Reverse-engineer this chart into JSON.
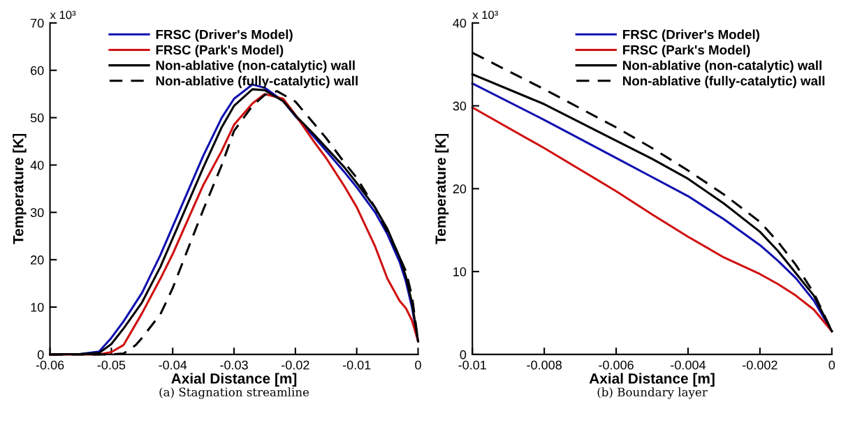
{
  "chart_data": [
    {
      "type": "line",
      "xlabel": "Axial Distance [m]",
      "ylabel": "Temperature [K]",
      "xlim": [
        -0.06,
        0
      ],
      "ylim": [
        0,
        70
      ],
      "xticks": [
        {
          "value": -0.06,
          "label": "-0.06"
        },
        {
          "value": -0.05,
          "label": "-0.05"
        },
        {
          "value": -0.04,
          "label": "-0.04"
        },
        {
          "value": -0.03,
          "label": "-0.03"
        },
        {
          "value": -0.02,
          "label": "-0.02"
        },
        {
          "value": -0.01,
          "label": "-0.01"
        },
        0
      ],
      "yticks": [
        0,
        10,
        20,
        30,
        40,
        50,
        60,
        70
      ],
      "grid": false,
      "legend": "top",
      "marker": "none",
      "annotations": [
        "x 10³",
        "(a) Stagnation streamline"
      ],
      "series": [
        {
          "name": "FRSC (Driver's Model)",
          "color": "#1010b0",
          "line_style": "solid",
          "x": [
            -0.06,
            -0.055,
            -0.052,
            -0.05,
            -0.048,
            -0.045,
            -0.042,
            -0.04,
            -0.037,
            -0.035,
            -0.032,
            -0.03,
            -0.027,
            -0.025,
            -0.022,
            -0.02,
            -0.017,
            -0.015,
            -0.012,
            -0.01,
            -0.007,
            -0.005,
            -0.003,
            -0.002,
            -0.001,
            0
          ],
          "values": [
            0,
            0.1,
            0.6,
            3.5,
            7,
            13,
            21,
            27,
            36,
            42,
            50,
            54,
            57,
            56.3,
            53.5,
            50.3,
            46,
            43,
            38.5,
            35.3,
            30,
            25.4,
            19.5,
            15.5,
            10,
            2.8
          ]
        },
        {
          "name": "FRSC (Park's Model)",
          "color": "#d01010",
          "line_style": "solid",
          "x": [
            -0.06,
            -0.052,
            -0.05,
            -0.048,
            -0.045,
            -0.042,
            -0.04,
            -0.037,
            -0.035,
            -0.032,
            -0.03,
            -0.027,
            -0.025,
            -0.022,
            -0.02,
            -0.017,
            -0.015,
            -0.012,
            -0.01,
            -0.007,
            -0.005,
            -0.003,
            -0.002,
            -0.001,
            0
          ],
          "values": [
            0,
            0,
            0.5,
            2,
            8.7,
            16,
            21.2,
            30,
            35.8,
            43,
            48.5,
            53,
            55,
            54,
            50.6,
            45,
            41.5,
            35.5,
            31.1,
            22.8,
            16,
            11.3,
            9.8,
            7.2,
            2.8
          ]
        },
        {
          "name": "Non-ablative (non-catalytic) wall",
          "color": "#000000",
          "line_style": "solid",
          "x": [
            -0.06,
            -0.055,
            -0.052,
            -0.05,
            -0.048,
            -0.045,
            -0.042,
            -0.04,
            -0.037,
            -0.035,
            -0.032,
            -0.03,
            -0.027,
            -0.025,
            -0.022,
            -0.02,
            -0.017,
            -0.015,
            -0.012,
            -0.01,
            -0.007,
            -0.005,
            -0.003,
            -0.002,
            -0.001,
            0
          ],
          "values": [
            0,
            0.1,
            0.3,
            2.2,
            5.5,
            11,
            18.5,
            24.5,
            33.5,
            39.5,
            48,
            52.5,
            56,
            55.8,
            53.5,
            50.5,
            46.5,
            43.7,
            39.5,
            36.2,
            31,
            26.5,
            20.5,
            16.5,
            11,
            2.8
          ]
        },
        {
          "name": "Non-ablative (fully-catalytic) wall",
          "color": "#000000",
          "line_style": "dashed",
          "x": [
            -0.06,
            -0.05,
            -0.048,
            -0.046,
            -0.045,
            -0.042,
            -0.04,
            -0.037,
            -0.035,
            -0.032,
            -0.03,
            -0.027,
            -0.025,
            -0.023,
            -0.02,
            -0.017,
            -0.015,
            -0.012,
            -0.01,
            -0.007,
            -0.005,
            -0.003,
            -0.002,
            -0.001,
            0
          ],
          "values": [
            0,
            0,
            0.2,
            2,
            3.5,
            8.5,
            14,
            24,
            30.6,
            40,
            47.2,
            52.5,
            54.8,
            55.6,
            53.4,
            48.8,
            45.7,
            40.5,
            37.3,
            31,
            25.9,
            20.5,
            17.6,
            12.4,
            2.8
          ]
        }
      ]
    },
    {
      "type": "line",
      "xlabel": "Axial Distance [m]",
      "ylabel": "Temperature [K]",
      "xlim": [
        -0.01,
        0
      ],
      "ylim": [
        0,
        40
      ],
      "xticks": [
        {
          "value": -0.01,
          "label": "-0.01"
        },
        {
          "value": -0.008,
          "label": "-0.008"
        },
        {
          "value": -0.006,
          "label": "-0.006"
        },
        {
          "value": -0.004,
          "label": "-0.004"
        },
        {
          "value": -0.002,
          "label": "-0.002"
        },
        0
      ],
      "yticks": [
        0,
        10,
        20,
        30,
        40
      ],
      "grid": false,
      "legend": "top right",
      "marker": "none",
      "annotations": [
        "x 10³",
        "(b) Boundary layer"
      ],
      "series": [
        {
          "name": "FRSC (Driver's Model)",
          "color": "#1010b0",
          "line_style": "solid",
          "x": [
            -0.01,
            -0.008,
            -0.006,
            -0.005,
            -0.004,
            -0.003,
            -0.002,
            -0.0015,
            -0.001,
            -0.0005,
            0
          ],
          "values": [
            32.7,
            28.3,
            23.7,
            21.4,
            19.1,
            16.3,
            13.2,
            11.3,
            9.2,
            6.5,
            2.8
          ]
        },
        {
          "name": "FRSC (Park's Model)",
          "color": "#d01010",
          "line_style": "solid",
          "x": [
            -0.01,
            -0.008,
            -0.006,
            -0.005,
            -0.004,
            -0.003,
            -0.002,
            -0.0015,
            -0.001,
            -0.0005,
            0
          ],
          "values": [
            29.8,
            24.9,
            19.7,
            16.9,
            14.2,
            11.7,
            9.7,
            8.5,
            7.1,
            5.4,
            2.8
          ]
        },
        {
          "name": "Non-ablative (non-catalytic) wall",
          "color": "#000000",
          "line_style": "solid",
          "x": [
            -0.01,
            -0.008,
            -0.006,
            -0.005,
            -0.004,
            -0.003,
            -0.002,
            -0.0015,
            -0.001,
            -0.0005,
            0
          ],
          "values": [
            33.8,
            30.2,
            25.8,
            23.6,
            21.2,
            18.2,
            14.8,
            12.5,
            9.8,
            7.1,
            2.8
          ]
        },
        {
          "name": "Non-ablative (fully-catalytic) wall",
          "color": "#000000",
          "line_style": "dashed",
          "x": [
            -0.01,
            -0.008,
            -0.006,
            -0.005,
            -0.004,
            -0.003,
            -0.002,
            -0.0015,
            -0.001,
            -0.0005,
            0
          ],
          "values": [
            36.4,
            32,
            27.4,
            24.9,
            22.2,
            19.3,
            16,
            13.6,
            10.8,
            7.4,
            2.8
          ]
        }
      ]
    }
  ]
}
